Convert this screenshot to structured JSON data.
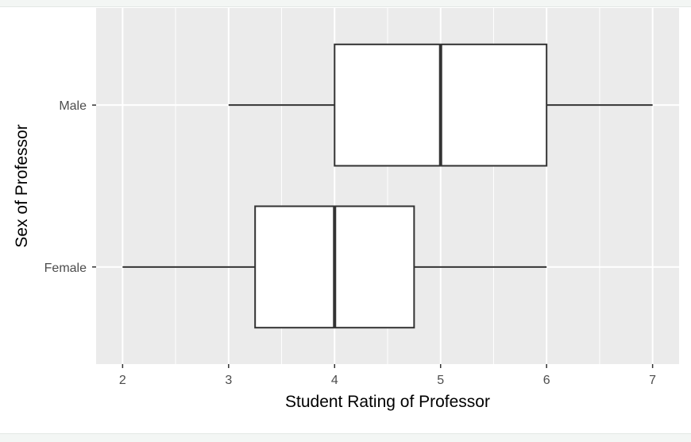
{
  "chart_data": {
    "type": "boxplot",
    "orientation": "horizontal",
    "xlabel": "Student Rating of Professor",
    "ylabel": "Sex of Professor",
    "xlim": [
      1.75,
      7.25
    ],
    "x_ticks": [
      "2",
      "3",
      "4",
      "5",
      "6",
      "7"
    ],
    "categories": [
      "Female",
      "Male"
    ],
    "series": [
      {
        "category": "Male",
        "min": 3,
        "q1": 4,
        "median": 5,
        "q3": 6,
        "max": 7
      },
      {
        "category": "Female",
        "min": 2,
        "q1": 3.25,
        "median": 4,
        "q3": 4.75,
        "max": 6
      }
    ],
    "grid": true,
    "colors": {
      "panel": "#ebebeb",
      "grid": "#ffffff",
      "box_fill": "#ffffff",
      "box_stroke": "#333333"
    }
  }
}
